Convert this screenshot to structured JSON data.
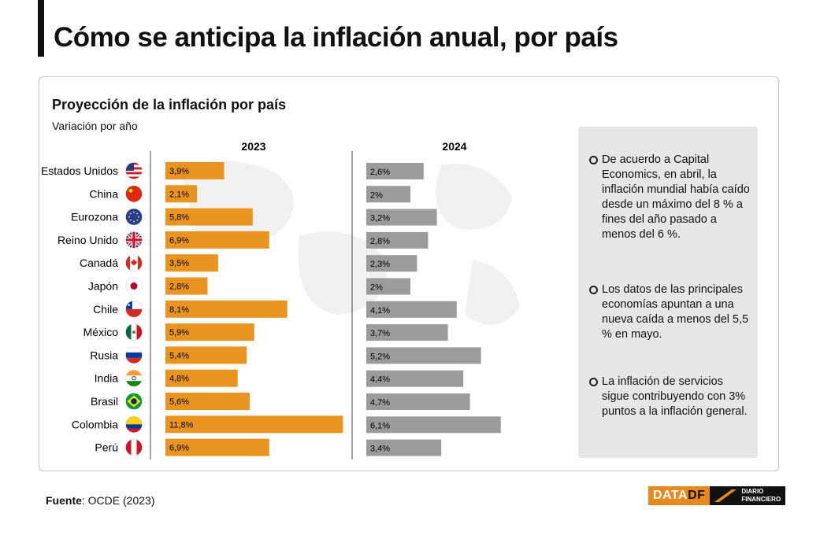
{
  "header": {
    "title": "Cómo se anticipa la inflación anual, por país"
  },
  "card": {
    "title": "Proyección de la inflación por país",
    "subtitle": "Variación por año"
  },
  "chart_data": {
    "type": "bar",
    "orientation": "horizontal",
    "title": "Proyección de la inflación por país",
    "subtitle": "Variación por año",
    "unit": "%",
    "categories": [
      "Estados Unidos",
      "China",
      "Eurozona",
      "Reino Unido",
      "Canadá",
      "Japón",
      "Chile",
      "México",
      "Rusia",
      "India",
      "Brasil",
      "Colombia",
      "Perú"
    ],
    "series": [
      {
        "name": "2023",
        "color": "#e8941f",
        "values": [
          3.9,
          2.1,
          5.8,
          6.9,
          3.5,
          2.8,
          8.1,
          5.9,
          5.4,
          4.8,
          5.6,
          11.8,
          6.9
        ],
        "labels": [
          "3,9%",
          "2,1%",
          "5,8%",
          "6,9%",
          "3,5%",
          "2,8%",
          "8,1%",
          "5,9%",
          "5,4%",
          "4,8%",
          "5,6%",
          "11,8%",
          "6,9%"
        ]
      },
      {
        "name": "2024",
        "color": "#9b9b9b",
        "values": [
          2.6,
          2,
          3.2,
          2.8,
          2.3,
          2,
          4.1,
          3.7,
          5.2,
          4.4,
          4.7,
          6.1,
          3.4
        ],
        "labels": [
          "2,6%",
          "2%",
          "3,2%",
          "2,8%",
          "2,3%",
          "2%",
          "4,1%",
          "3,7%",
          "5,2%",
          "4,4%",
          "4,7%",
          "6,1%",
          "3,4%"
        ]
      }
    ]
  },
  "flags": [
    "flag-usa-icon",
    "flag-china-icon",
    "flag-eu-icon",
    "flag-uk-icon",
    "flag-canada-icon",
    "flag-japan-icon",
    "flag-chile-icon",
    "flag-mexico-icon",
    "flag-russia-icon",
    "flag-india-icon",
    "flag-brazil-icon",
    "flag-colombia-icon",
    "flag-peru-icon"
  ],
  "notes": [
    "De acuerdo a Capital Economics, en abril, la inflación mundial había caído desde un máximo del 8 % a fines del año pasado a menos del 6 %.",
    "Los datos de las principales economías apuntan a una nueva caída a menos del 5,5 % en mayo.",
    "La inflación de servicios sigue contribuyendo con 3% puntos a la inflación general."
  ],
  "footer": {
    "source_label": "Fuente",
    "source_text": ": OCDE (2023)"
  },
  "logo": {
    "data_part": "DATA",
    "df_part": "DF",
    "line1": "DIARIO",
    "line2": "FINANCIERO"
  }
}
